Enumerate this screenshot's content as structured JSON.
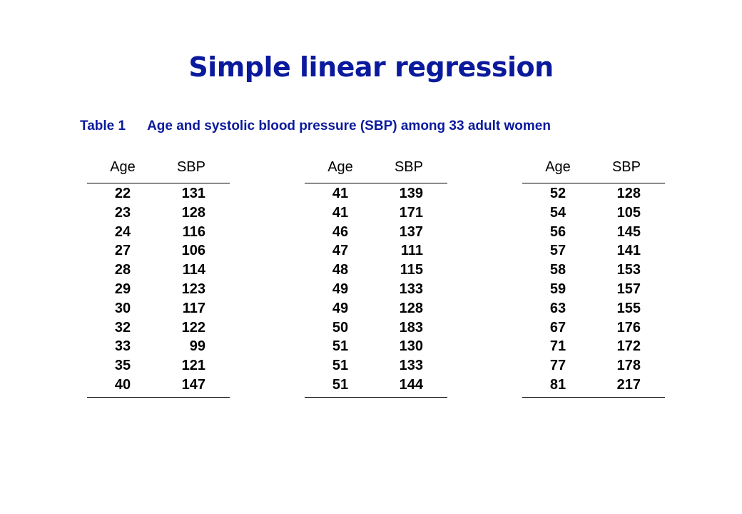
{
  "title": "Simple linear regression",
  "caption": {
    "label": "Table 1",
    "text": "Age and systolic blood pressure (SBP) among 33 adult women"
  },
  "tables": [
    {
      "headers": {
        "age": "Age",
        "sbp": "SBP"
      },
      "rows": [
        {
          "age": "22",
          "sbp": "131"
        },
        {
          "age": "23",
          "sbp": "128"
        },
        {
          "age": "24",
          "sbp": "116"
        },
        {
          "age": "27",
          "sbp": "106"
        },
        {
          "age": "28",
          "sbp": "114"
        },
        {
          "age": "29",
          "sbp": "123"
        },
        {
          "age": "30",
          "sbp": "117"
        },
        {
          "age": "32",
          "sbp": "122"
        },
        {
          "age": "33",
          "sbp": "99"
        },
        {
          "age": "35",
          "sbp": "121"
        },
        {
          "age": "40",
          "sbp": "147"
        }
      ]
    },
    {
      "headers": {
        "age": "Age",
        "sbp": "SBP"
      },
      "rows": [
        {
          "age": "41",
          "sbp": "139"
        },
        {
          "age": "41",
          "sbp": "171"
        },
        {
          "age": "46",
          "sbp": "137"
        },
        {
          "age": "47",
          "sbp": "111"
        },
        {
          "age": "48",
          "sbp": "115"
        },
        {
          "age": "49",
          "sbp": "133"
        },
        {
          "age": "49",
          "sbp": "128"
        },
        {
          "age": "50",
          "sbp": "183"
        },
        {
          "age": "51",
          "sbp": "130"
        },
        {
          "age": "51",
          "sbp": "133"
        },
        {
          "age": "51",
          "sbp": "144"
        }
      ]
    },
    {
      "headers": {
        "age": "Age",
        "sbp": "SBP"
      },
      "rows": [
        {
          "age": "52",
          "sbp": "128"
        },
        {
          "age": "54",
          "sbp": "105"
        },
        {
          "age": "56",
          "sbp": "145"
        },
        {
          "age": "57",
          "sbp": "141"
        },
        {
          "age": "58",
          "sbp": "153"
        },
        {
          "age": "59",
          "sbp": "157"
        },
        {
          "age": "63",
          "sbp": "155"
        },
        {
          "age": "67",
          "sbp": "176"
        },
        {
          "age": "71",
          "sbp": "172"
        },
        {
          "age": "77",
          "sbp": "178"
        },
        {
          "age": "81",
          "sbp": "217"
        }
      ]
    }
  ],
  "colors": {
    "title": "#0b1a9c",
    "caption": "#0b1a9c",
    "text": "#000000",
    "background": "#ffffff"
  }
}
